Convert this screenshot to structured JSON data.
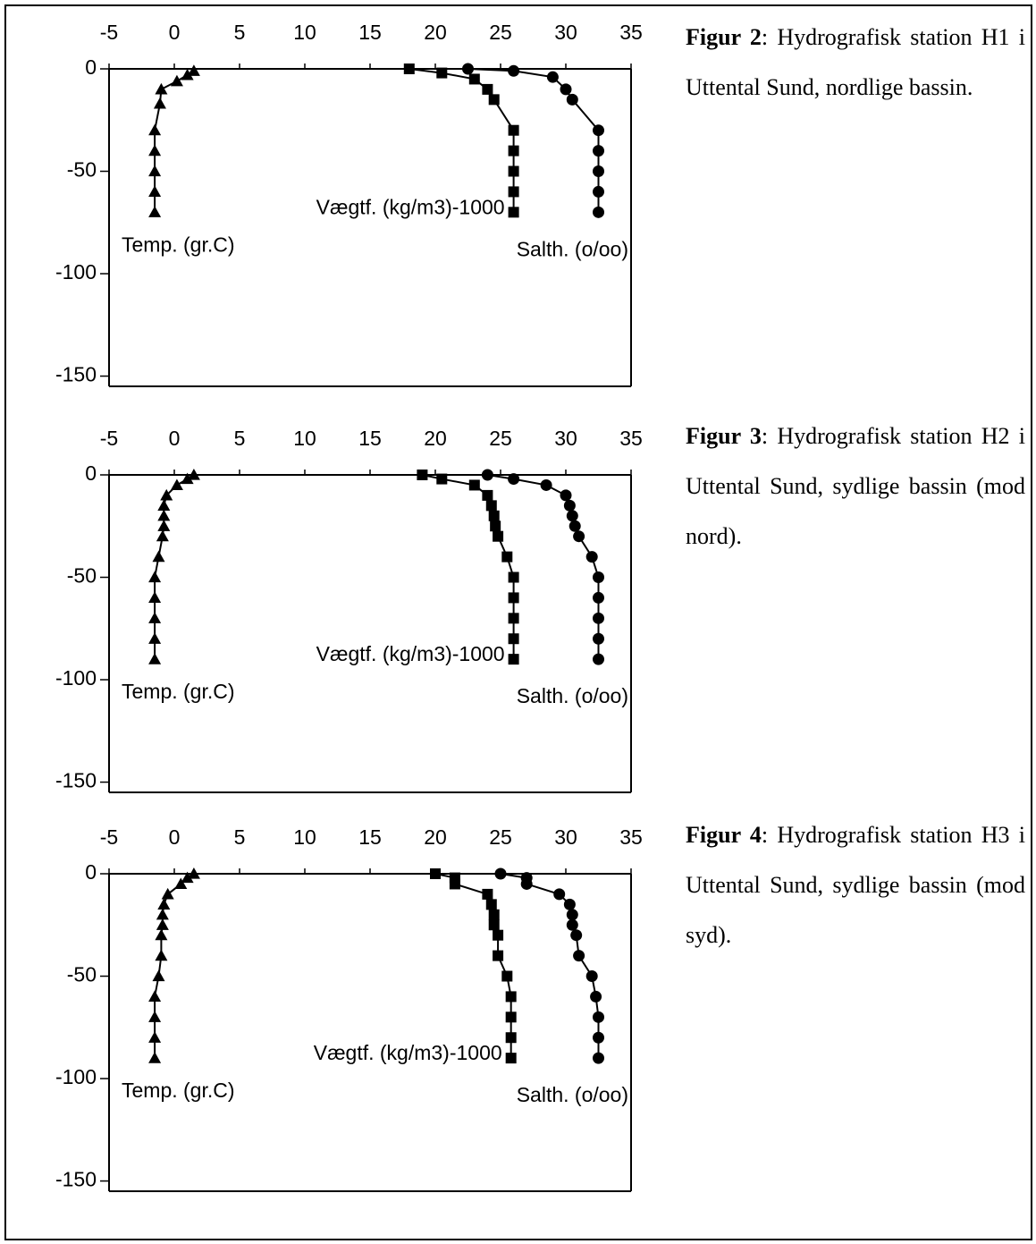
{
  "chart_data": [
    {
      "type": "line",
      "caption": {
        "label": "Figur 2",
        "text": ": Hydrografisk station H1 i Uttental Sund, nordlige bassin."
      },
      "xlim": [
        -5,
        35
      ],
      "xticks": [
        -5,
        0,
        5,
        10,
        15,
        20,
        25,
        30,
        35
      ],
      "ylim": [
        -155,
        0
      ],
      "yticks": [
        0,
        -50,
        -100,
        -150
      ],
      "series": [
        {
          "name": "Temp. (gr.C)",
          "marker": "triangle",
          "color": "#000000",
          "x": [
            1.5,
            1.0,
            0.2,
            -1.0,
            -1.1,
            -1.5,
            -1.5,
            -1.5,
            -1.5,
            -1.5
          ],
          "values": [
            -1,
            -3,
            -6,
            -10,
            -17,
            -30,
            -40,
            -50,
            -60,
            -70
          ]
        },
        {
          "name": "Vægtf. (kg/m3)-1000",
          "marker": "square",
          "color": "#000000",
          "x": [
            18,
            20.5,
            23,
            24,
            24.5,
            26,
            26,
            26,
            26,
            26
          ],
          "values": [
            0,
            -2,
            -5,
            -10,
            -15,
            -30,
            -40,
            -50,
            -60,
            -70
          ]
        },
        {
          "name": "Salth. (o/oo)",
          "marker": "circle",
          "color": "#000000",
          "x": [
            22.5,
            26,
            29,
            30,
            30.5,
            32.5,
            32.5,
            32.5,
            32.5,
            32.5
          ],
          "values": [
            0,
            -1,
            -4,
            -10,
            -15,
            -30,
            -40,
            -50,
            -60,
            -70
          ]
        }
      ]
    },
    {
      "type": "line",
      "caption": {
        "label": "Figur 3",
        "text": ": Hydrografisk station H2 i Uttental Sund, sydlige bassin (mod nord)."
      },
      "xlim": [
        -5,
        35
      ],
      "xticks": [
        -5,
        0,
        5,
        10,
        15,
        20,
        25,
        30,
        35
      ],
      "ylim": [
        -155,
        0
      ],
      "yticks": [
        0,
        -50,
        -100,
        -150
      ],
      "series": [
        {
          "name": "Temp. (gr.C)",
          "marker": "triangle",
          "color": "#000000",
          "x": [
            1.5,
            1.0,
            0.2,
            -0.6,
            -0.8,
            -0.8,
            -0.8,
            -0.9,
            -1.2,
            -1.5,
            -1.5,
            -1.5,
            -1.5,
            -1.5
          ],
          "values": [
            0,
            -2,
            -5,
            -10,
            -15,
            -20,
            -25,
            -30,
            -40,
            -50,
            -60,
            -70,
            -80,
            -90
          ]
        },
        {
          "name": "Vægtf. (kg/m3)-1000",
          "marker": "square",
          "color": "#000000",
          "x": [
            19,
            20.5,
            23,
            24,
            24.3,
            24.5,
            24.6,
            24.8,
            25.5,
            26,
            26,
            26,
            26,
            26
          ],
          "values": [
            0,
            -2,
            -5,
            -10,
            -15,
            -20,
            -25,
            -30,
            -40,
            -50,
            -60,
            -70,
            -80,
            -90
          ]
        },
        {
          "name": "Salth. (o/oo)",
          "marker": "circle",
          "color": "#000000",
          "x": [
            24,
            26,
            28.5,
            30,
            30.3,
            30.5,
            30.7,
            31,
            32,
            32.5,
            32.5,
            32.5,
            32.5,
            32.5
          ],
          "values": [
            0,
            -2,
            -5,
            -10,
            -15,
            -20,
            -25,
            -30,
            -40,
            -50,
            -60,
            -70,
            -80,
            -90
          ]
        }
      ]
    },
    {
      "type": "line",
      "caption": {
        "label": "Figur 4",
        "text": ": Hydrografisk station H3 i Uttental Sund, sydlige bassin (mod syd)."
      },
      "xlim": [
        -5,
        35
      ],
      "xticks": [
        -5,
        0,
        5,
        10,
        15,
        20,
        25,
        30,
        35
      ],
      "ylim": [
        -155,
        0
      ],
      "yticks": [
        0,
        -50,
        -100,
        -150
      ],
      "series": [
        {
          "name": "Temp. (gr.C)",
          "marker": "triangle",
          "color": "#000000",
          "x": [
            1.5,
            1.0,
            0.5,
            -0.5,
            -0.8,
            -0.9,
            -0.9,
            -1.0,
            -1.0,
            -1.2,
            -1.5,
            -1.5,
            -1.5,
            -1.5
          ],
          "values": [
            0,
            -2,
            -5,
            -10,
            -15,
            -20,
            -25,
            -30,
            -40,
            -50,
            -60,
            -70,
            -80,
            -90
          ]
        },
        {
          "name": "Vægtf. (kg/m3)-1000",
          "marker": "square",
          "color": "#000000",
          "x": [
            20,
            21.5,
            21.5,
            24,
            24.3,
            24.5,
            24.5,
            24.8,
            24.8,
            25.5,
            25.8,
            25.8,
            25.8,
            25.8
          ],
          "values": [
            0,
            -2,
            -5,
            -10,
            -15,
            -20,
            -25,
            -30,
            -40,
            -50,
            -60,
            -70,
            -80,
            -90
          ]
        },
        {
          "name": "Salth. (o/oo)",
          "marker": "circle",
          "color": "#000000",
          "x": [
            25,
            27,
            27,
            29.5,
            30.3,
            30.5,
            30.5,
            30.8,
            31,
            32,
            32.3,
            32.5,
            32.5,
            32.5
          ],
          "values": [
            0,
            -2,
            -5,
            -10,
            -15,
            -20,
            -25,
            -30,
            -40,
            -50,
            -60,
            -70,
            -80,
            -90
          ]
        }
      ]
    }
  ]
}
